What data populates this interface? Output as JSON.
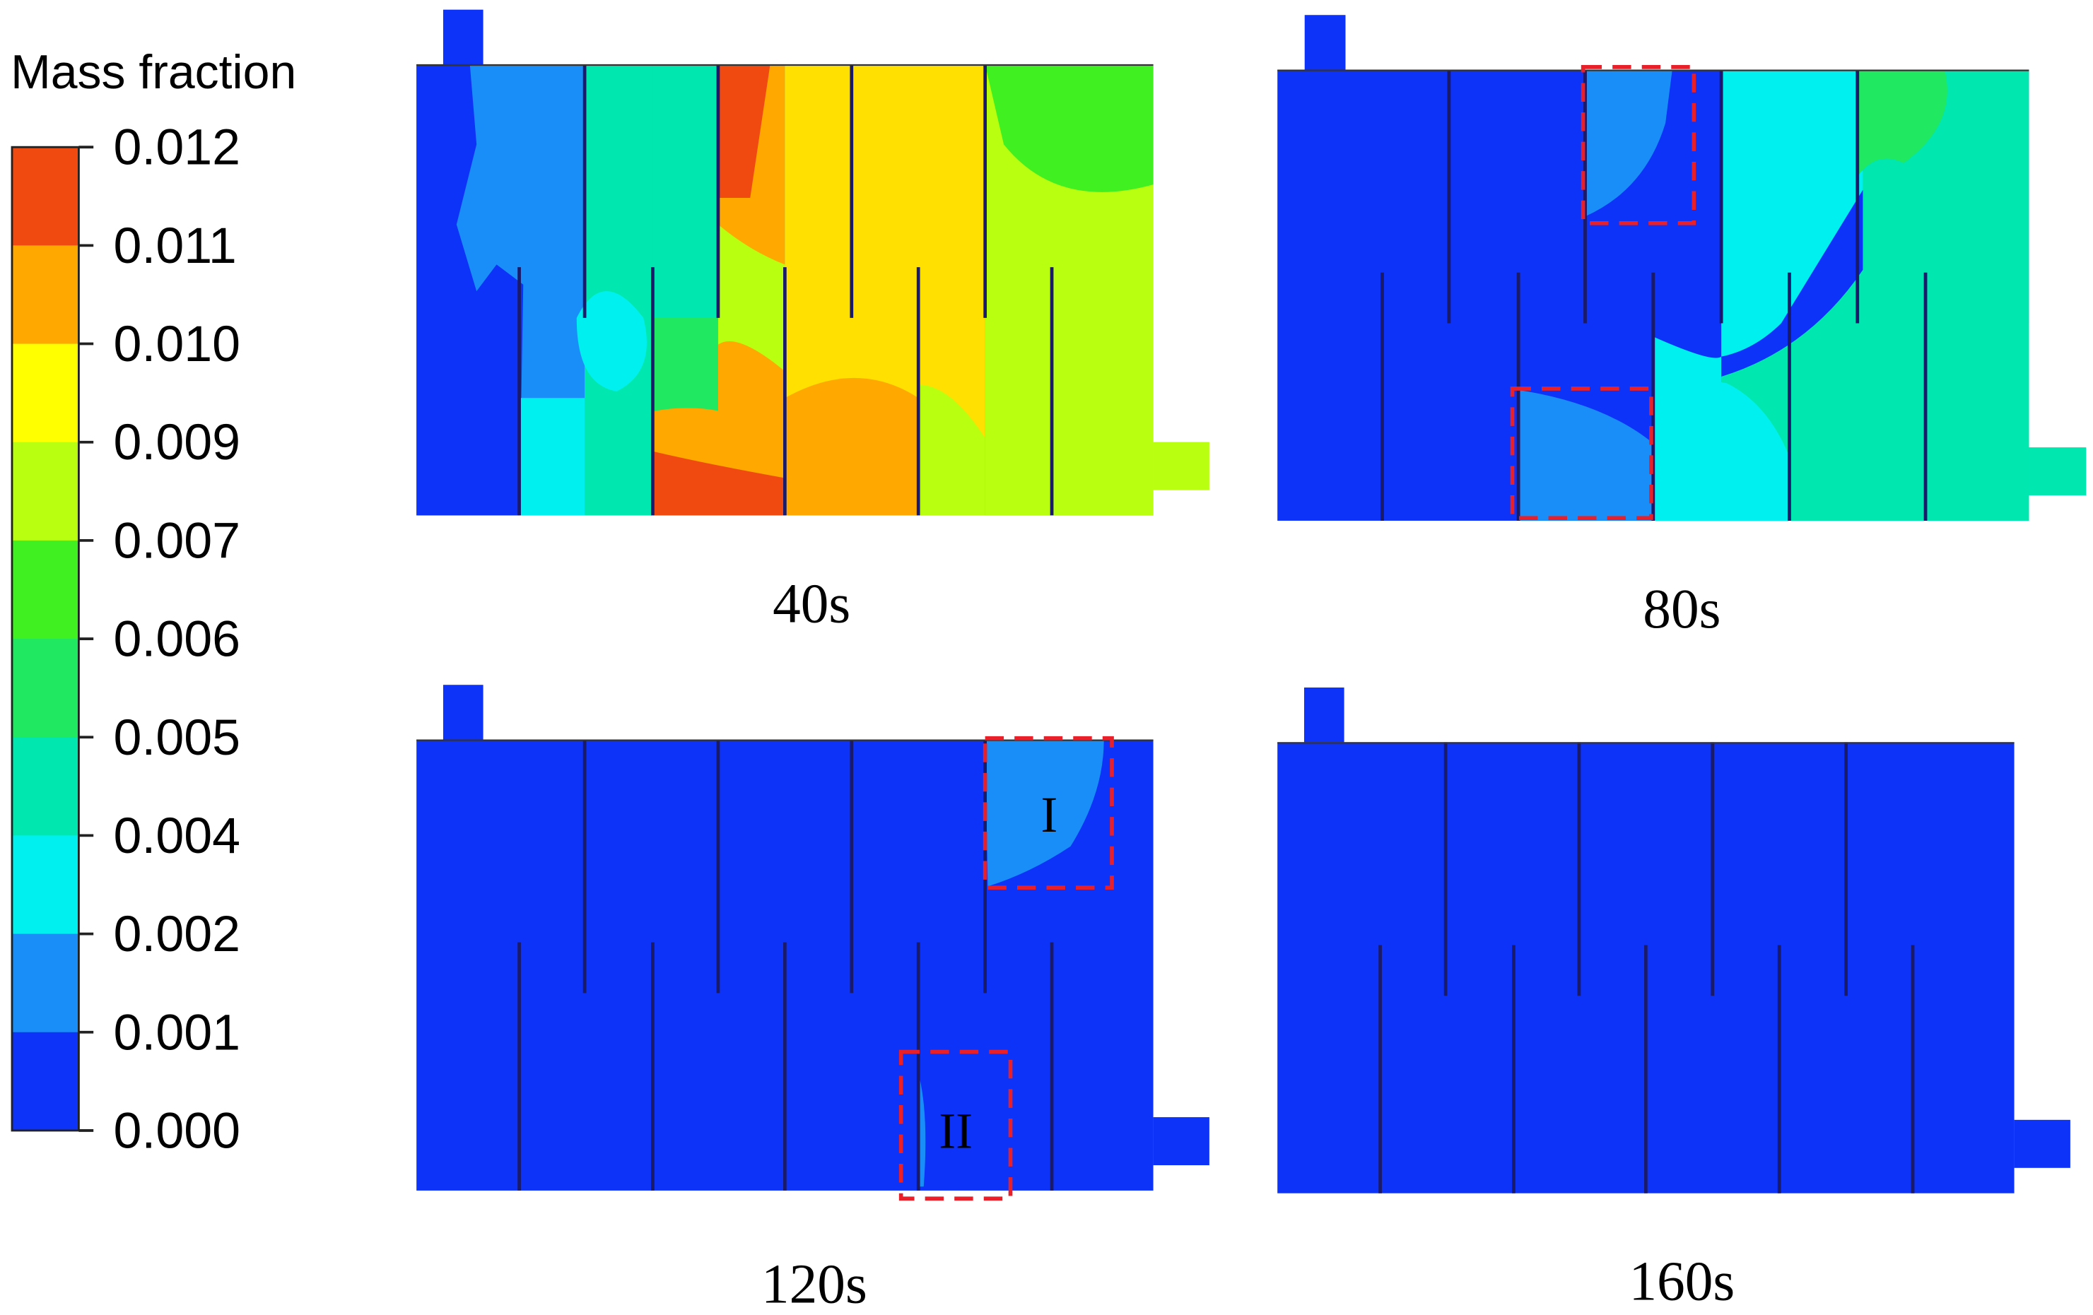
{
  "legend": {
    "title": "Mass fraction",
    "ticks": [
      "0.012",
      "0.011",
      "0.010",
      "0.009",
      "0.007",
      "0.006",
      "0.005",
      "0.004",
      "0.002",
      "0.001",
      "0.000"
    ]
  },
  "panels": [
    {
      "label": "40s"
    },
    {
      "label": "80s"
    },
    {
      "label": "120s"
    },
    {
      "label": "160s"
    }
  ],
  "annotations": [
    "I",
    "II"
  ]
}
